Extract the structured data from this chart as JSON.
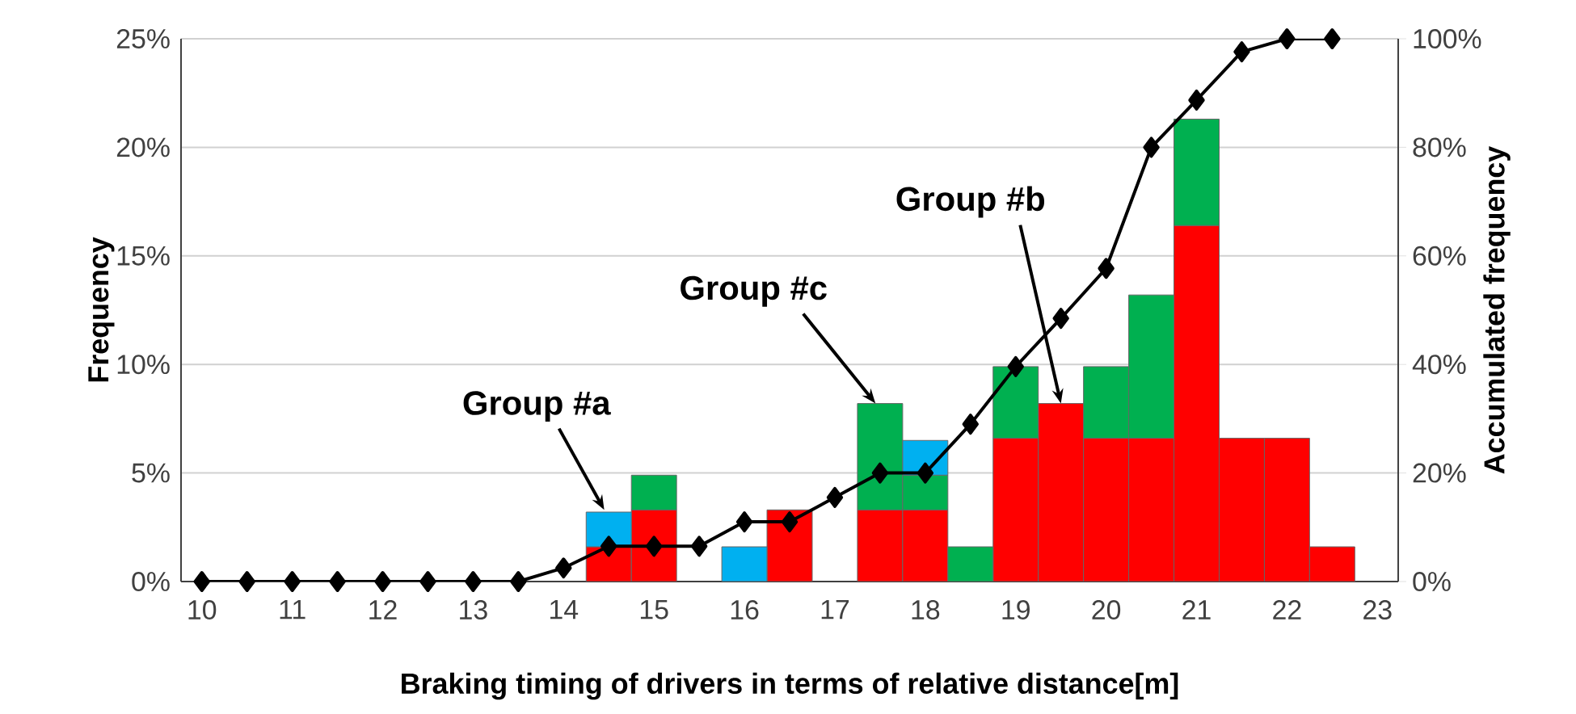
{
  "chart_data": {
    "type": "bar",
    "stacked": true,
    "xlabel": "Braking timing of drivers in terms of relative distance[m]",
    "ylabel": "Frequency",
    "y2label": "Accumulated frequency",
    "x": [
      10,
      10.5,
      11,
      11.5,
      12,
      12.5,
      13,
      13.5,
      14,
      14.5,
      15,
      15.5,
      16,
      16.5,
      17,
      17.5,
      18,
      18.5,
      19,
      19.5,
      20,
      20.5,
      21,
      21.5,
      22,
      22.5
    ],
    "series": [
      {
        "color": "#ff0000",
        "values": [
          null,
          null,
          null,
          null,
          null,
          null,
          null,
          null,
          null,
          1.6,
          3.3,
          null,
          null,
          3.3,
          null,
          3.3,
          3.3,
          null,
          6.6,
          8.2,
          6.6,
          6.6,
          16.4,
          6.6,
          6.6,
          1.6
        ]
      },
      {
        "color": "#00b050",
        "values": [
          null,
          null,
          null,
          null,
          null,
          null,
          null,
          null,
          null,
          null,
          1.6,
          null,
          null,
          null,
          null,
          4.9,
          1.6,
          1.6,
          3.3,
          null,
          3.3,
          6.6,
          4.9,
          null,
          null,
          null
        ]
      },
      {
        "color": "#00b0f0",
        "values": [
          null,
          null,
          null,
          null,
          null,
          null,
          null,
          null,
          null,
          1.6,
          null,
          null,
          1.6,
          null,
          null,
          null,
          1.6,
          null,
          null,
          null,
          null,
          null,
          null,
          null,
          null,
          null
        ]
      },
      {
        "type": "line",
        "axis": "y2",
        "color": "#000000",
        "marker": "diamond",
        "line_style": "solid",
        "values": [
          0,
          0,
          0,
          0,
          0,
          0,
          0,
          0,
          2.5,
          6.5,
          6.5,
          6.5,
          11,
          11,
          15.5,
          20,
          20,
          29,
          39.6,
          48.5,
          57.7,
          80,
          88.7,
          97.6,
          100,
          100
        ]
      }
    ],
    "xlim": [
      9.77,
      23.23
    ],
    "xticks": [
      10,
      11,
      12,
      13,
      14,
      15,
      16,
      17,
      18,
      19,
      20,
      21,
      22,
      23
    ],
    "ylim": [
      0,
      25
    ],
    "yticks": [
      {
        "value": 0,
        "label": "0%"
      },
      {
        "value": 5,
        "label": "5%"
      },
      {
        "value": 10,
        "label": "10%"
      },
      {
        "value": 15,
        "label": "15%"
      },
      {
        "value": 20,
        "label": "20%"
      },
      {
        "value": 25,
        "label": "25%"
      }
    ],
    "y2lim": [
      0,
      100
    ],
    "y2ticks": [
      {
        "value": 0,
        "label": "0%"
      },
      {
        "value": 20,
        "label": "20%"
      },
      {
        "value": 40,
        "label": "40%"
      },
      {
        "value": 60,
        "label": "60%"
      },
      {
        "value": 80,
        "label": "80%"
      },
      {
        "value": 100,
        "label": "100%"
      }
    ],
    "grid": "y",
    "annotations": [
      {
        "text": "Group #a",
        "x": 14.45,
        "y": 3.3
      },
      {
        "text": "Group #c",
        "x": 17.45,
        "y": 8.2
      },
      {
        "text": "Group #b",
        "x": 19.5,
        "y": 8.2
      }
    ]
  }
}
